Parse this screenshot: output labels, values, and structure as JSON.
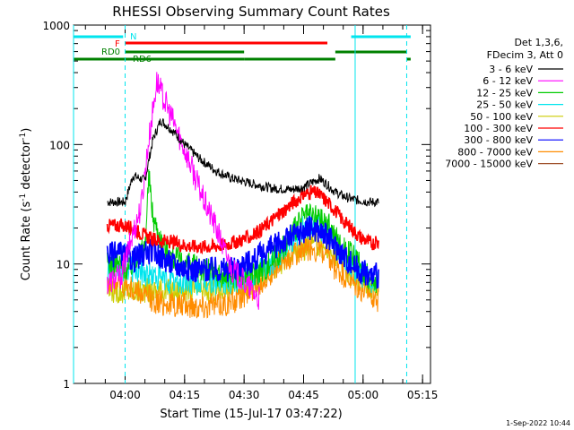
{
  "chart_data": {
    "type": "line",
    "title": "RHESSI Observing Summary Count Rates",
    "xlabel": "Start Time (15-Jul-17 03:47:22)",
    "ylabel_main": "Count Rate (s",
    "ylabel_sup1": "-1",
    "ylabel_mid": " detector",
    "ylabel_sup2": "-1",
    "ylabel_end": ")",
    "y_scale": "log",
    "ylim": [
      1,
      1000
    ],
    "xlim_minutes_after_0347": [
      0,
      90
    ],
    "x_ticks": [
      {
        "label": "04:00",
        "min": 13
      },
      {
        "label": "04:15",
        "min": 28
      },
      {
        "label": "04:30",
        "min": 43
      },
      {
        "label": "04:45",
        "min": 58
      },
      {
        "label": "05:00",
        "min": 73
      },
      {
        "label": "05:15",
        "min": 88
      }
    ],
    "y_ticks": [
      {
        "label": "1",
        "value": 1
      },
      {
        "label": "10",
        "value": 10
      },
      {
        "label": "100",
        "value": 100
      },
      {
        "label": "1000",
        "value": 1000
      }
    ],
    "legend_header": [
      "Det 1,3,6,",
      "FDecim 3, Att 0"
    ],
    "flags": [
      {
        "label": "N",
        "color": "#00e5ee"
      },
      {
        "label": "F",
        "color": "#ff0000"
      },
      {
        "label": "RD0",
        "color": "#008000"
      },
      {
        "label": "RD6",
        "color": "#008000"
      }
    ],
    "series": [
      {
        "name": "3 - 6 keV",
        "color": "#000000",
        "x": [
          8.5,
          13,
          15,
          18,
          20,
          22,
          25,
          28,
          32,
          36,
          40,
          45,
          50,
          55,
          58,
          60,
          62,
          64,
          66,
          68,
          70,
          72,
          75,
          77
        ],
        "y": [
          33,
          33,
          55,
          50,
          110,
          160,
          130,
          100,
          75,
          60,
          52,
          47,
          43,
          42,
          44,
          48,
          52,
          46,
          40,
          37,
          35,
          34,
          33,
          33
        ]
      },
      {
        "name": "6 - 12 keV",
        "color": "#ff00ff",
        "x": [
          8.5,
          12,
          15,
          17,
          19,
          21,
          23,
          25,
          27,
          29,
          31,
          33,
          36,
          38,
          40,
          43,
          45,
          47
        ],
        "y": [
          7,
          8,
          18,
          30,
          110,
          340,
          230,
          160,
          110,
          75,
          50,
          33,
          20,
          13,
          9,
          7,
          6,
          5
        ]
      },
      {
        "name": "12 - 25 keV",
        "color": "#00cc00",
        "x": [
          8.5,
          12,
          14,
          16,
          18,
          19,
          20,
          22,
          24,
          28,
          33,
          38,
          43,
          48,
          53,
          58,
          61,
          64,
          67,
          70,
          73,
          75,
          77
        ],
        "y": [
          10,
          10,
          9,
          12,
          14,
          55,
          25,
          16,
          12,
          10,
          9,
          8,
          8,
          9,
          14,
          25,
          25,
          22,
          15,
          12,
          9,
          7,
          7
        ]
      },
      {
        "name": "25 - 50 keV",
        "color": "#00e5ee",
        "x": [
          8.5,
          12,
          15,
          20,
          25,
          30,
          35,
          40,
          45,
          50,
          54,
          58,
          61,
          64,
          67,
          70,
          73,
          75,
          77
        ],
        "y": [
          9,
          9,
          9,
          8,
          7,
          7,
          7,
          7,
          8,
          10,
          15,
          20,
          22,
          18,
          13,
          10,
          8,
          7,
          7
        ]
      },
      {
        "name": "50 - 100 keV",
        "color": "#cccc00",
        "x": [
          8.5,
          15,
          25,
          35,
          45,
          55,
          60,
          65,
          70,
          77
        ],
        "y": [
          6,
          6,
          6,
          6,
          7,
          12,
          15,
          13,
          8,
          6
        ]
      },
      {
        "name": "100 - 300 keV",
        "color": "#ff0000",
        "x": [
          8.5,
          12,
          15,
          17,
          20,
          25,
          30,
          35,
          40,
          45,
          50,
          55,
          58,
          60,
          62,
          64,
          66,
          68,
          70,
          72,
          75,
          77
        ],
        "y": [
          21,
          21,
          20,
          18,
          16,
          15,
          14,
          14,
          15,
          17,
          23,
          32,
          38,
          40,
          38,
          33,
          28,
          23,
          20,
          17,
          15,
          15
        ]
      },
      {
        "name": "300 - 800 keV",
        "color": "#0000ff",
        "x": [
          8.5,
          12,
          15,
          18,
          20,
          25,
          30,
          35,
          40,
          43,
          46,
          49,
          52,
          55,
          58,
          60,
          62,
          64,
          66,
          68,
          70,
          72,
          75,
          77
        ],
        "y": [
          12,
          12,
          11,
          12,
          13,
          10,
          9,
          9,
          9,
          10,
          11,
          13,
          15,
          17,
          19,
          20,
          19,
          17,
          14,
          12,
          10,
          9,
          8,
          8
        ]
      },
      {
        "name": "800 - 7000 keV",
        "color": "#ff8c00",
        "x": [
          8.5,
          12,
          15,
          20,
          25,
          30,
          35,
          40,
          43,
          46,
          49,
          52,
          55,
          58,
          60,
          62,
          64,
          66,
          68,
          70,
          72,
          75,
          77
        ],
        "y": [
          7,
          7,
          6,
          5,
          4.5,
          4.5,
          4.5,
          4.8,
          5.5,
          6.5,
          8,
          10,
          12,
          13,
          13.5,
          13,
          11,
          9,
          8,
          7,
          6,
          5.5,
          5
        ]
      },
      {
        "name": "7000 - 15000 keV",
        "color": "#a0522d",
        "x": [],
        "y": []
      }
    ]
  },
  "timestamp": "1-Sep-2022 10:44"
}
